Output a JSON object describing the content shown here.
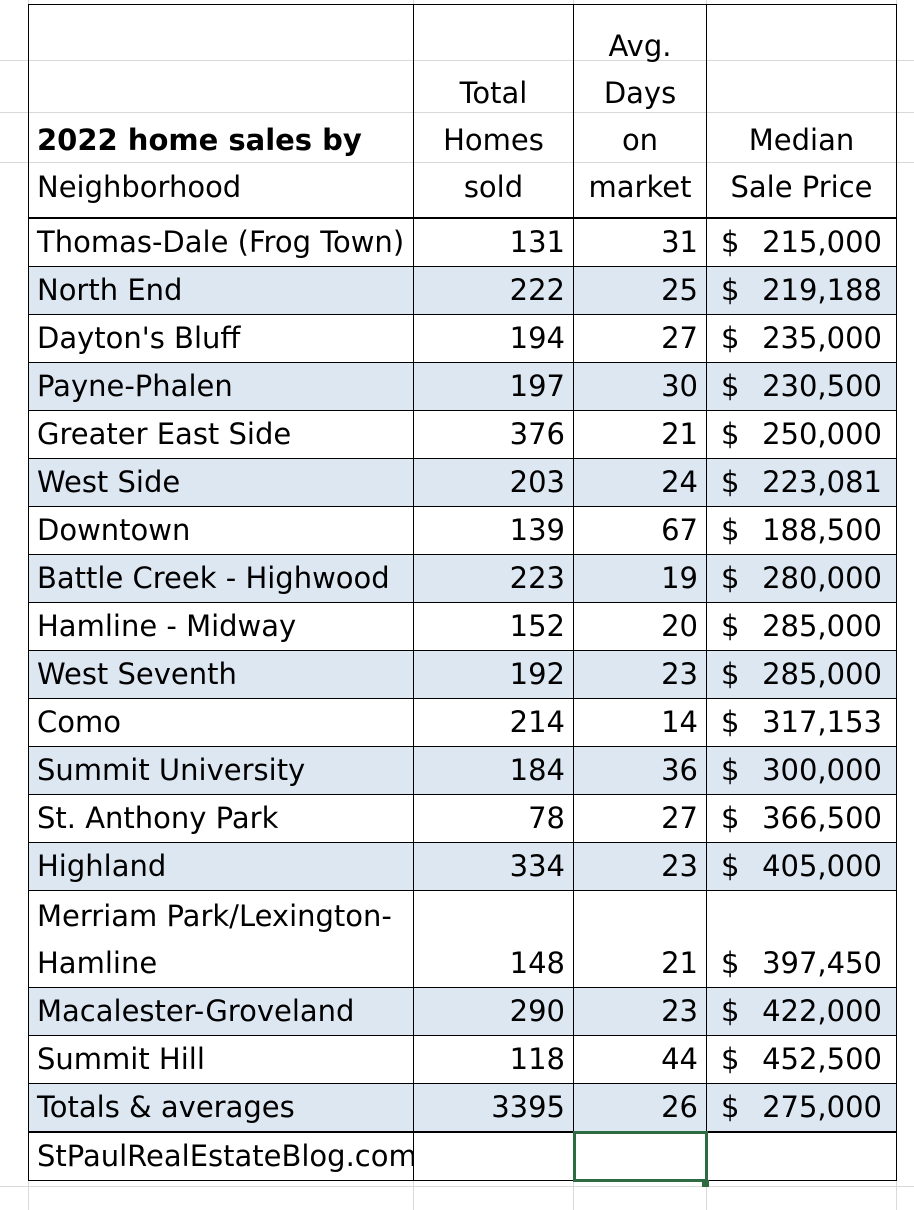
{
  "table": {
    "header": {
      "title_bold": "2022 home sales by",
      "title_rest": "Neighborhood",
      "col_homes": "Total Homes sold",
      "col_days": "Avg. Days on market",
      "col_price": "Median Sale Price"
    },
    "rows": [
      {
        "name": "Thomas-Dale (Frog Town)",
        "homes": "131",
        "days": "31",
        "currency": "$",
        "price": "215,000"
      },
      {
        "name": "North End",
        "homes": "222",
        "days": "25",
        "currency": "$",
        "price": "219,188"
      },
      {
        "name": "Dayton's Bluff",
        "homes": "194",
        "days": "27",
        "currency": "$",
        "price": "235,000"
      },
      {
        "name": "Payne-Phalen",
        "homes": "197",
        "days": "30",
        "currency": "$",
        "price": "230,500"
      },
      {
        "name": "Greater East Side",
        "homes": "376",
        "days": "21",
        "currency": "$",
        "price": "250,000"
      },
      {
        "name": "West Side",
        "homes": "203",
        "days": "24",
        "currency": "$",
        "price": "223,081"
      },
      {
        "name": "Downtown",
        "homes": "139",
        "days": "67",
        "currency": "$",
        "price": "188,500"
      },
      {
        "name": "Battle Creek - Highwood",
        "homes": "223",
        "days": "19",
        "currency": "$",
        "price": "280,000"
      },
      {
        "name": "Hamline - Midway",
        "homes": "152",
        "days": "20",
        "currency": "$",
        "price": "285,000"
      },
      {
        "name": "West Seventh",
        "homes": "192",
        "days": "23",
        "currency": "$",
        "price": "285,000"
      },
      {
        "name": "Como",
        "homes": "214",
        "days": "14",
        "currency": "$",
        "price": "317,153"
      },
      {
        "name": "Summit University",
        "homes": "184",
        "days": "36",
        "currency": "$",
        "price": "300,000"
      },
      {
        "name": "St. Anthony Park",
        "homes": "78",
        "days": "27",
        "currency": "$",
        "price": "366,500"
      },
      {
        "name": "Highland",
        "homes": "334",
        "days": "23",
        "currency": "$",
        "price": "405,000"
      },
      {
        "name": "Merriam Park/Lexington-Hamline",
        "homes": "148",
        "days": "21",
        "currency": "$",
        "price": "397,450"
      },
      {
        "name": "Macalester-Groveland",
        "homes": "290",
        "days": "23",
        "currency": "$",
        "price": "422,000"
      },
      {
        "name": "Summit Hill",
        "homes": "118",
        "days": "44",
        "currency": "$",
        "price": "452,500"
      },
      {
        "name": "Totals & averages",
        "homes": "3395",
        "days": "26",
        "currency": "$",
        "price": "275,000"
      }
    ],
    "footer": {
      "source": "StPaulRealEstateBlog.com"
    }
  }
}
